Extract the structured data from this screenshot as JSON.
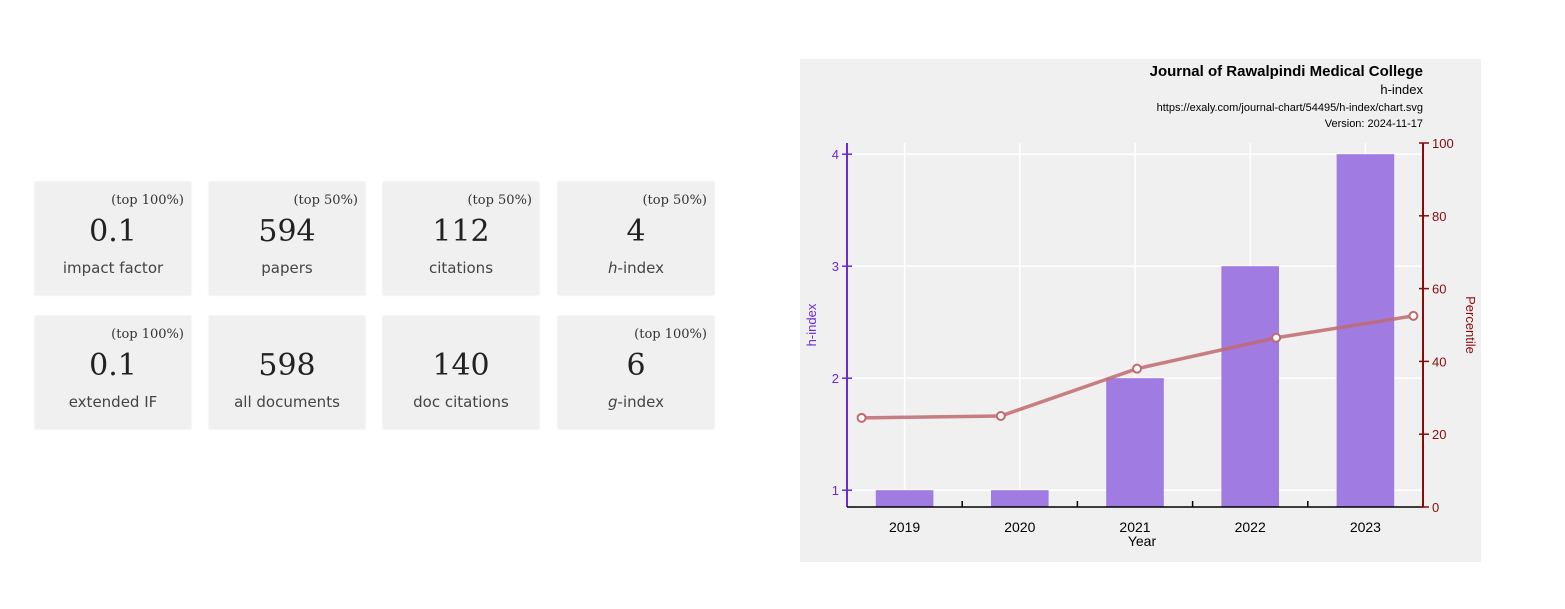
{
  "metrics": [
    {
      "rank": "(top 100%)",
      "value": "0.1",
      "label": "impact factor"
    },
    {
      "rank": "(top 50%)",
      "value": "594",
      "label": "papers"
    },
    {
      "rank": "(top 50%)",
      "value": "112",
      "label": "citations"
    },
    {
      "rank": "(top 50%)",
      "value": "4",
      "label_prefix": "h",
      "label": "-index"
    },
    {
      "rank": "(top 100%)",
      "value": "0.1",
      "label": "extended IF"
    },
    {
      "rank": "",
      "value": "598",
      "label": "all documents"
    },
    {
      "rank": "",
      "value": "140",
      "label": "doc citations"
    },
    {
      "rank": "(top 100%)",
      "value": "6",
      "label_prefix": "g",
      "label": "-index"
    }
  ],
  "chart_data": {
    "type": "bar",
    "title": "Journal of Rawalpindi Medical College",
    "subtitle": "h-index",
    "source": "https://exaly.com/journal-chart/54495/h-index/chart.svg",
    "version": "Version: 2024-11-17",
    "xlabel": "Year",
    "ylabel": "h-index",
    "y2label": "Percentile",
    "categories": [
      "2019",
      "2020",
      "2021",
      "2022",
      "2023"
    ],
    "series": [
      {
        "values": [
          1,
          1,
          2,
          3,
          4
        ],
        "axis": "left"
      },
      {
        "values": [
          24.5,
          25,
          38,
          46.5,
          52.5
        ],
        "axis": "right",
        "kind": "line"
      }
    ],
    "ylim": [
      0.85,
      4.1
    ],
    "y2lim": [
      0,
      100
    ],
    "yticks": [
      "1",
      "2",
      "3",
      "4"
    ],
    "y2ticks": [
      "0",
      "20",
      "40",
      "60",
      "80",
      "100"
    ],
    "colors": {
      "bar": "#9b75e0",
      "line": "#c06a70",
      "left_axis": "#6a2bd6",
      "right_axis": "#8b0a0a",
      "background": "#f0f0f0",
      "grid": "#ffffff"
    }
  }
}
